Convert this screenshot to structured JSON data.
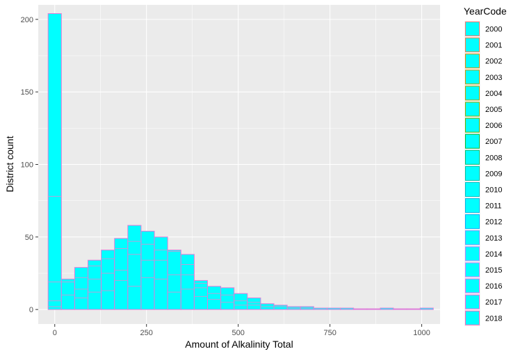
{
  "chart_data": {
    "type": "bar",
    "subtype": "stacked-histogram",
    "xlabel": "Amount of Alkalinity Total",
    "ylabel": "District count",
    "xlim": [
      -45,
      1050
    ],
    "ylim": [
      -10,
      210
    ],
    "x_ticks": [
      0,
      250,
      500,
      750,
      1000
    ],
    "x_tick_labels": [
      "0",
      "250",
      "500",
      "750",
      "1000"
    ],
    "y_ticks": [
      0,
      50,
      100,
      150,
      200
    ],
    "y_tick_labels": [
      "0",
      "50",
      "100",
      "150",
      "200"
    ],
    "grid": true,
    "fill_color": "#00FFFF",
    "bin_width": 36.2,
    "bin_centers": [
      0,
      36.2,
      72.4,
      108.6,
      144.8,
      181,
      217.2,
      253.4,
      289.6,
      325.8,
      362,
      398.2,
      434.4,
      470.6,
      506.8,
      543,
      579.2,
      615.4,
      651.6,
      687.8,
      724,
      760.2,
      796.4,
      832.6,
      868.8,
      905,
      941.2,
      977.4,
      1013.6
    ],
    "totals": [
      204,
      21,
      29,
      34,
      41,
      49,
      58,
      54,
      50,
      41,
      38,
      20,
      16,
      15,
      11,
      8,
      4,
      3,
      2,
      2,
      1,
      1,
      1,
      0.5,
      0.5,
      1,
      0.5,
      0.5,
      1
    ],
    "inner_layers": [
      [
        78,
        19,
        0,
        2,
        6
      ],
      [
        19,
        10
      ],
      [
        22,
        14,
        8
      ],
      [
        30,
        21,
        12
      ],
      [
        35,
        25,
        13
      ],
      [
        42,
        27,
        20
      ],
      [
        47,
        38,
        16
      ],
      [
        45,
        34,
        22
      ],
      [
        41,
        34,
        21
      ],
      [
        40,
        24,
        12
      ],
      [
        31,
        24,
        14
      ],
      [
        18,
        15,
        9
      ],
      [
        11,
        7
      ],
      [
        10,
        5
      ],
      [
        6,
        3
      ],
      [
        5,
        3
      ],
      [
        2
      ],
      [
        2
      ],
      [
        1
      ],
      [
        1
      ],
      [],
      [],
      [],
      [],
      [],
      [],
      [],
      [],
      []
    ],
    "legend": {
      "title": "YearCode",
      "position": "right",
      "entries": [
        "2000",
        "2001",
        "2002",
        "2003",
        "2004",
        "2005",
        "2006",
        "2007",
        "2008",
        "2009",
        "2010",
        "2011",
        "2012",
        "2013",
        "2014",
        "2015",
        "2016",
        "2017",
        "2018"
      ],
      "outline_colors": [
        "#F8766D",
        "#EE8043",
        "#DE8C00",
        "#C99800",
        "#B0A100",
        "#8EAB00",
        "#5EB300",
        "#00BA38",
        "#00BF74",
        "#00C0A3",
        "#00BFC4",
        "#00B8E5",
        "#00ADFA",
        "#619CFF",
        "#A58AFF",
        "#C77CFF",
        "#E76BF3",
        "#FA62DB",
        "#FF62BC"
      ]
    }
  }
}
